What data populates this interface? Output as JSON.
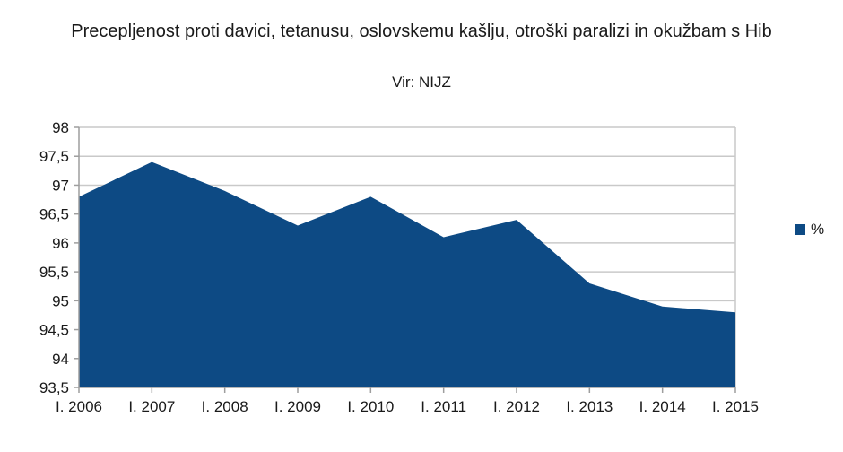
{
  "chart_data": {
    "type": "area",
    "title": "Precepljenost proti davici, tetanusu, oslovskemu kašlju, otroški paralizi in okužbam s Hib",
    "subtitle": "Vir: NIJZ",
    "categories": [
      "I. 2006",
      "I. 2007",
      "I. 2008",
      "I. 2009",
      "I. 2010",
      "I. 2011",
      "I. 2012",
      "I. 2013",
      "I. 2014",
      "I. 2015"
    ],
    "series": [
      {
        "name": "%",
        "values": [
          96.8,
          97.4,
          96.9,
          96.3,
          96.8,
          96.1,
          96.4,
          95.3,
          94.9,
          94.8
        ]
      }
    ],
    "ylim": [
      93.5,
      98
    ],
    "ytick_step": 0.5,
    "yticks": [
      {
        "value": 98,
        "label": "98"
      },
      {
        "value": 97.5,
        "label": "97,5"
      },
      {
        "value": 97,
        "label": "97"
      },
      {
        "value": 96.5,
        "label": "96,5"
      },
      {
        "value": 96,
        "label": "96"
      },
      {
        "value": 95.5,
        "label": "95,5"
      },
      {
        "value": 95,
        "label": "95"
      },
      {
        "value": 94.5,
        "label": "94,5"
      },
      {
        "value": 94,
        "label": "94"
      },
      {
        "value": 93.5,
        "label": "93,5"
      }
    ],
    "grid": "horizontal",
    "legend_position": "right",
    "decimal_separator": ",",
    "colors": {
      "series_fill": "#0d4a84",
      "gridline": "#c9c9c9",
      "axis": "#9e9e9e",
      "text": "#1a1a1a"
    }
  }
}
